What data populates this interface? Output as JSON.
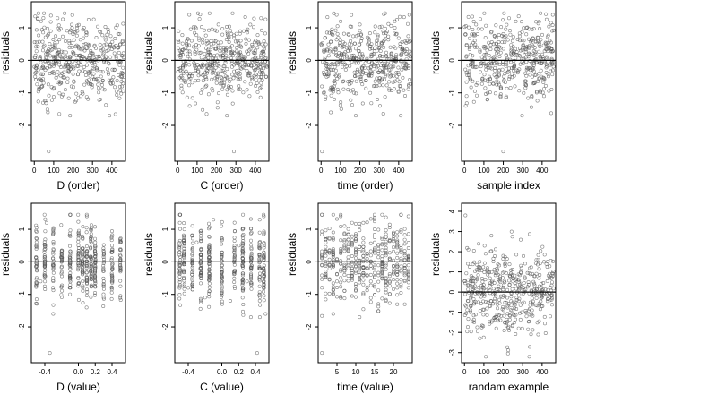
{
  "chart_data": [
    {
      "type": "scatter",
      "xlabel": "D (order)",
      "ylabel": "residuals",
      "xlim": [
        -15,
        470
      ],
      "ylim": [
        -3.1,
        1.8
      ],
      "xticks": [
        0,
        100,
        200,
        300,
        400
      ],
      "yticks": [
        -2,
        -1,
        0,
        1
      ],
      "reference_line_y": 0,
      "marker": "open-circle",
      "n_points": 460,
      "points_description": "",
      "points": [
        [
          5,
          1.35
        ],
        [
          12,
          0.55
        ],
        [
          20,
          -0.3
        ],
        [
          35,
          1.2
        ],
        [
          48,
          -0.7
        ],
        [
          60,
          0.2
        ],
        [
          70,
          -1.6
        ],
        [
          74,
          -2.8
        ],
        [
          85,
          0.9
        ],
        [
          100,
          -0.4
        ],
        [
          120,
          1.3
        ],
        [
          140,
          0.1
        ],
        [
          160,
          -0.9
        ],
        [
          180,
          0.6
        ],
        [
          200,
          -0.2
        ],
        [
          220,
          1.0
        ],
        [
          240,
          -1.1
        ],
        [
          260,
          0.3
        ],
        [
          280,
          1.25
        ],
        [
          300,
          -0.5
        ],
        [
          320,
          0.7
        ],
        [
          340,
          -1.2
        ],
        [
          360,
          0.0
        ],
        [
          380,
          0.95
        ],
        [
          400,
          -0.6
        ],
        [
          420,
          0.45
        ],
        [
          440,
          -0.15
        ],
        [
          455,
          0.6
        ]
      ]
    },
    {
      "type": "scatter",
      "xlabel": "C (order)",
      "ylabel": "residuals",
      "xlim": [
        -15,
        470
      ],
      "ylim": [
        -3.1,
        1.8
      ],
      "xticks": [
        0,
        100,
        200,
        300,
        400
      ],
      "yticks": [
        -2,
        -1,
        0,
        1
      ],
      "reference_line_y": 0,
      "marker": "open-circle",
      "n_points": 460,
      "points": [
        [
          5,
          0.9
        ],
        [
          30,
          -0.4
        ],
        [
          60,
          1.4
        ],
        [
          90,
          0.2
        ],
        [
          120,
          -1.0
        ],
        [
          150,
          0.6
        ],
        [
          180,
          -0.3
        ],
        [
          210,
          1.1
        ],
        [
          240,
          -0.7
        ],
        [
          270,
          0.4
        ],
        [
          290,
          -2.8
        ],
        [
          310,
          -0.1
        ],
        [
          340,
          0.9
        ],
        [
          370,
          -1.1
        ],
        [
          400,
          0.3
        ],
        [
          430,
          1.3
        ],
        [
          455,
          -0.5
        ]
      ]
    },
    {
      "type": "scatter",
      "xlabel": "time (order)",
      "ylabel": "residuals",
      "xlim": [
        -15,
        470
      ],
      "ylim": [
        -3.1,
        1.8
      ],
      "xticks": [
        0,
        100,
        200,
        300,
        400
      ],
      "yticks": [
        -2,
        -1,
        0,
        1
      ],
      "reference_line_y": 0,
      "marker": "open-circle",
      "n_points": 460,
      "points": [
        [
          5,
          -2.8
        ],
        [
          20,
          0.3
        ],
        [
          50,
          -1.6
        ],
        [
          80,
          1.4
        ],
        [
          110,
          -0.2
        ],
        [
          140,
          0.8
        ],
        [
          170,
          -1.0
        ],
        [
          200,
          1.1
        ],
        [
          230,
          -0.4
        ],
        [
          260,
          0.5
        ],
        [
          290,
          -1.2
        ],
        [
          320,
          0.9
        ],
        [
          350,
          -0.3
        ],
        [
          380,
          1.2
        ],
        [
          410,
          -0.8
        ],
        [
          440,
          0.2
        ],
        [
          455,
          1.4
        ]
      ]
    },
    {
      "type": "scatter",
      "xlabel": "sample index",
      "ylabel": "residuals",
      "xlim": [
        -15,
        470
      ],
      "ylim": [
        -3.1,
        1.8
      ],
      "xticks": [
        0,
        100,
        200,
        300,
        400
      ],
      "yticks": [
        -2,
        -1,
        0,
        1
      ],
      "reference_line_y": 0,
      "marker": "open-circle",
      "n_points": 460,
      "points": [
        [
          5,
          0.8
        ],
        [
          30,
          -0.6
        ],
        [
          60,
          1.1
        ],
        [
          90,
          0.1
        ],
        [
          120,
          -1.0
        ],
        [
          150,
          0.5
        ],
        [
          180,
          -0.3
        ],
        [
          200,
          -2.8
        ],
        [
          230,
          1.3
        ],
        [
          260,
          -0.8
        ],
        [
          290,
          0.3
        ],
        [
          320,
          1.0
        ],
        [
          350,
          -0.5
        ],
        [
          380,
          0.7
        ],
        [
          410,
          -1.1
        ],
        [
          440,
          0.4
        ],
        [
          455,
          1.4
        ]
      ]
    },
    {
      "type": "scatter",
      "xlabel": "D (value)",
      "ylabel": "residuals",
      "xlim": [
        -0.56,
        0.56
      ],
      "ylim": [
        -3.1,
        1.8
      ],
      "xticks": [
        -0.4,
        0.0,
        0.2,
        0.4
      ],
      "xticklabels": [
        "-0.4",
        "0.0",
        "0.2",
        "0.4"
      ],
      "yticks": [
        -2,
        -1,
        0,
        1
      ],
      "reference_line_y": 0,
      "marker": "open-circle",
      "n_points": 460,
      "points": [
        [
          -0.5,
          0.4
        ],
        [
          -0.45,
          -0.6
        ],
        [
          -0.38,
          1.2
        ],
        [
          -0.3,
          -1.6
        ],
        [
          -0.34,
          -2.8
        ],
        [
          -0.2,
          0.2
        ],
        [
          -0.1,
          -1.0
        ],
        [
          0.0,
          0.9
        ],
        [
          0.05,
          0.3
        ],
        [
          0.1,
          1.4
        ],
        [
          0.15,
          -0.5
        ],
        [
          0.2,
          0.6
        ],
        [
          0.3,
          -1.1
        ],
        [
          0.4,
          0.5
        ],
        [
          0.5,
          -0.3
        ]
      ]
    },
    {
      "type": "scatter",
      "xlabel": "C (value)",
      "ylabel": "residuals",
      "xlim": [
        -0.56,
        0.56
      ],
      "ylim": [
        -3.1,
        1.8
      ],
      "xticks": [
        -0.4,
        0.0,
        0.2,
        0.4
      ],
      "xticklabels": [
        "-0.4",
        "0.0",
        "0.2",
        "0.4"
      ],
      "yticks": [
        -2,
        -1,
        0,
        1
      ],
      "reference_line_y": 0,
      "marker": "open-circle",
      "n_points": 460,
      "points": [
        [
          -0.5,
          1.2
        ],
        [
          -0.4,
          -0.8
        ],
        [
          -0.3,
          0.6
        ],
        [
          -0.2,
          -1.1
        ],
        [
          -0.1,
          1.3
        ],
        [
          0.0,
          0.2
        ],
        [
          0.1,
          -1.2
        ],
        [
          0.2,
          0.5
        ],
        [
          0.3,
          -0.6
        ],
        [
          0.42,
          -2.8
        ],
        [
          0.45,
          0.9
        ],
        [
          0.5,
          1.4
        ],
        [
          0.52,
          -1.6
        ]
      ]
    },
    {
      "type": "scatter",
      "xlabel": "time (value)",
      "ylabel": "residuals",
      "xlim": [
        0,
        25
      ],
      "ylim": [
        -3.1,
        1.8
      ],
      "xticks": [
        5,
        10,
        15,
        20
      ],
      "yticks": [
        -2,
        -1,
        0,
        1
      ],
      "reference_line_y": 0,
      "marker": "open-circle",
      "n_points": 460,
      "points": [
        [
          1,
          -2.8
        ],
        [
          2,
          0.3
        ],
        [
          4,
          -1.6
        ],
        [
          6,
          1.4
        ],
        [
          8,
          -0.2
        ],
        [
          10,
          0.8
        ],
        [
          12,
          -1.0
        ],
        [
          12,
          1.2
        ],
        [
          14,
          -0.4
        ],
        [
          16,
          0.5
        ],
        [
          18,
          -1.2
        ],
        [
          20,
          0.9
        ],
        [
          22,
          -0.3
        ],
        [
          24,
          1.4
        ],
        [
          24,
          -0.8
        ]
      ]
    },
    {
      "type": "scatter",
      "xlabel": "randam example",
      "ylabel": "residuals",
      "xlim": [
        -15,
        470
      ],
      "ylim": [
        -3.5,
        4.4
      ],
      "xticks": [
        0,
        100,
        200,
        300,
        400
      ],
      "yticks": [
        -3,
        -2,
        -1,
        0,
        1,
        2,
        3,
        4
      ],
      "reference_line_y": 0,
      "marker": "open-circle",
      "n_points": 460,
      "points": [
        [
          5,
          3.8
        ],
        [
          20,
          2.1
        ],
        [
          50,
          -1.5
        ],
        [
          80,
          1.2
        ],
        [
          110,
          -3.2
        ],
        [
          140,
          0.4
        ],
        [
          170,
          -0.8
        ],
        [
          200,
          1.8
        ],
        [
          230,
          -1.9
        ],
        [
          260,
          0.6
        ],
        [
          290,
          2.6
        ],
        [
          320,
          -1.2
        ],
        [
          350,
          0.9
        ],
        [
          380,
          -2.1
        ],
        [
          410,
          1.5
        ],
        [
          440,
          -0.4
        ],
        [
          455,
          0.8
        ]
      ]
    }
  ]
}
